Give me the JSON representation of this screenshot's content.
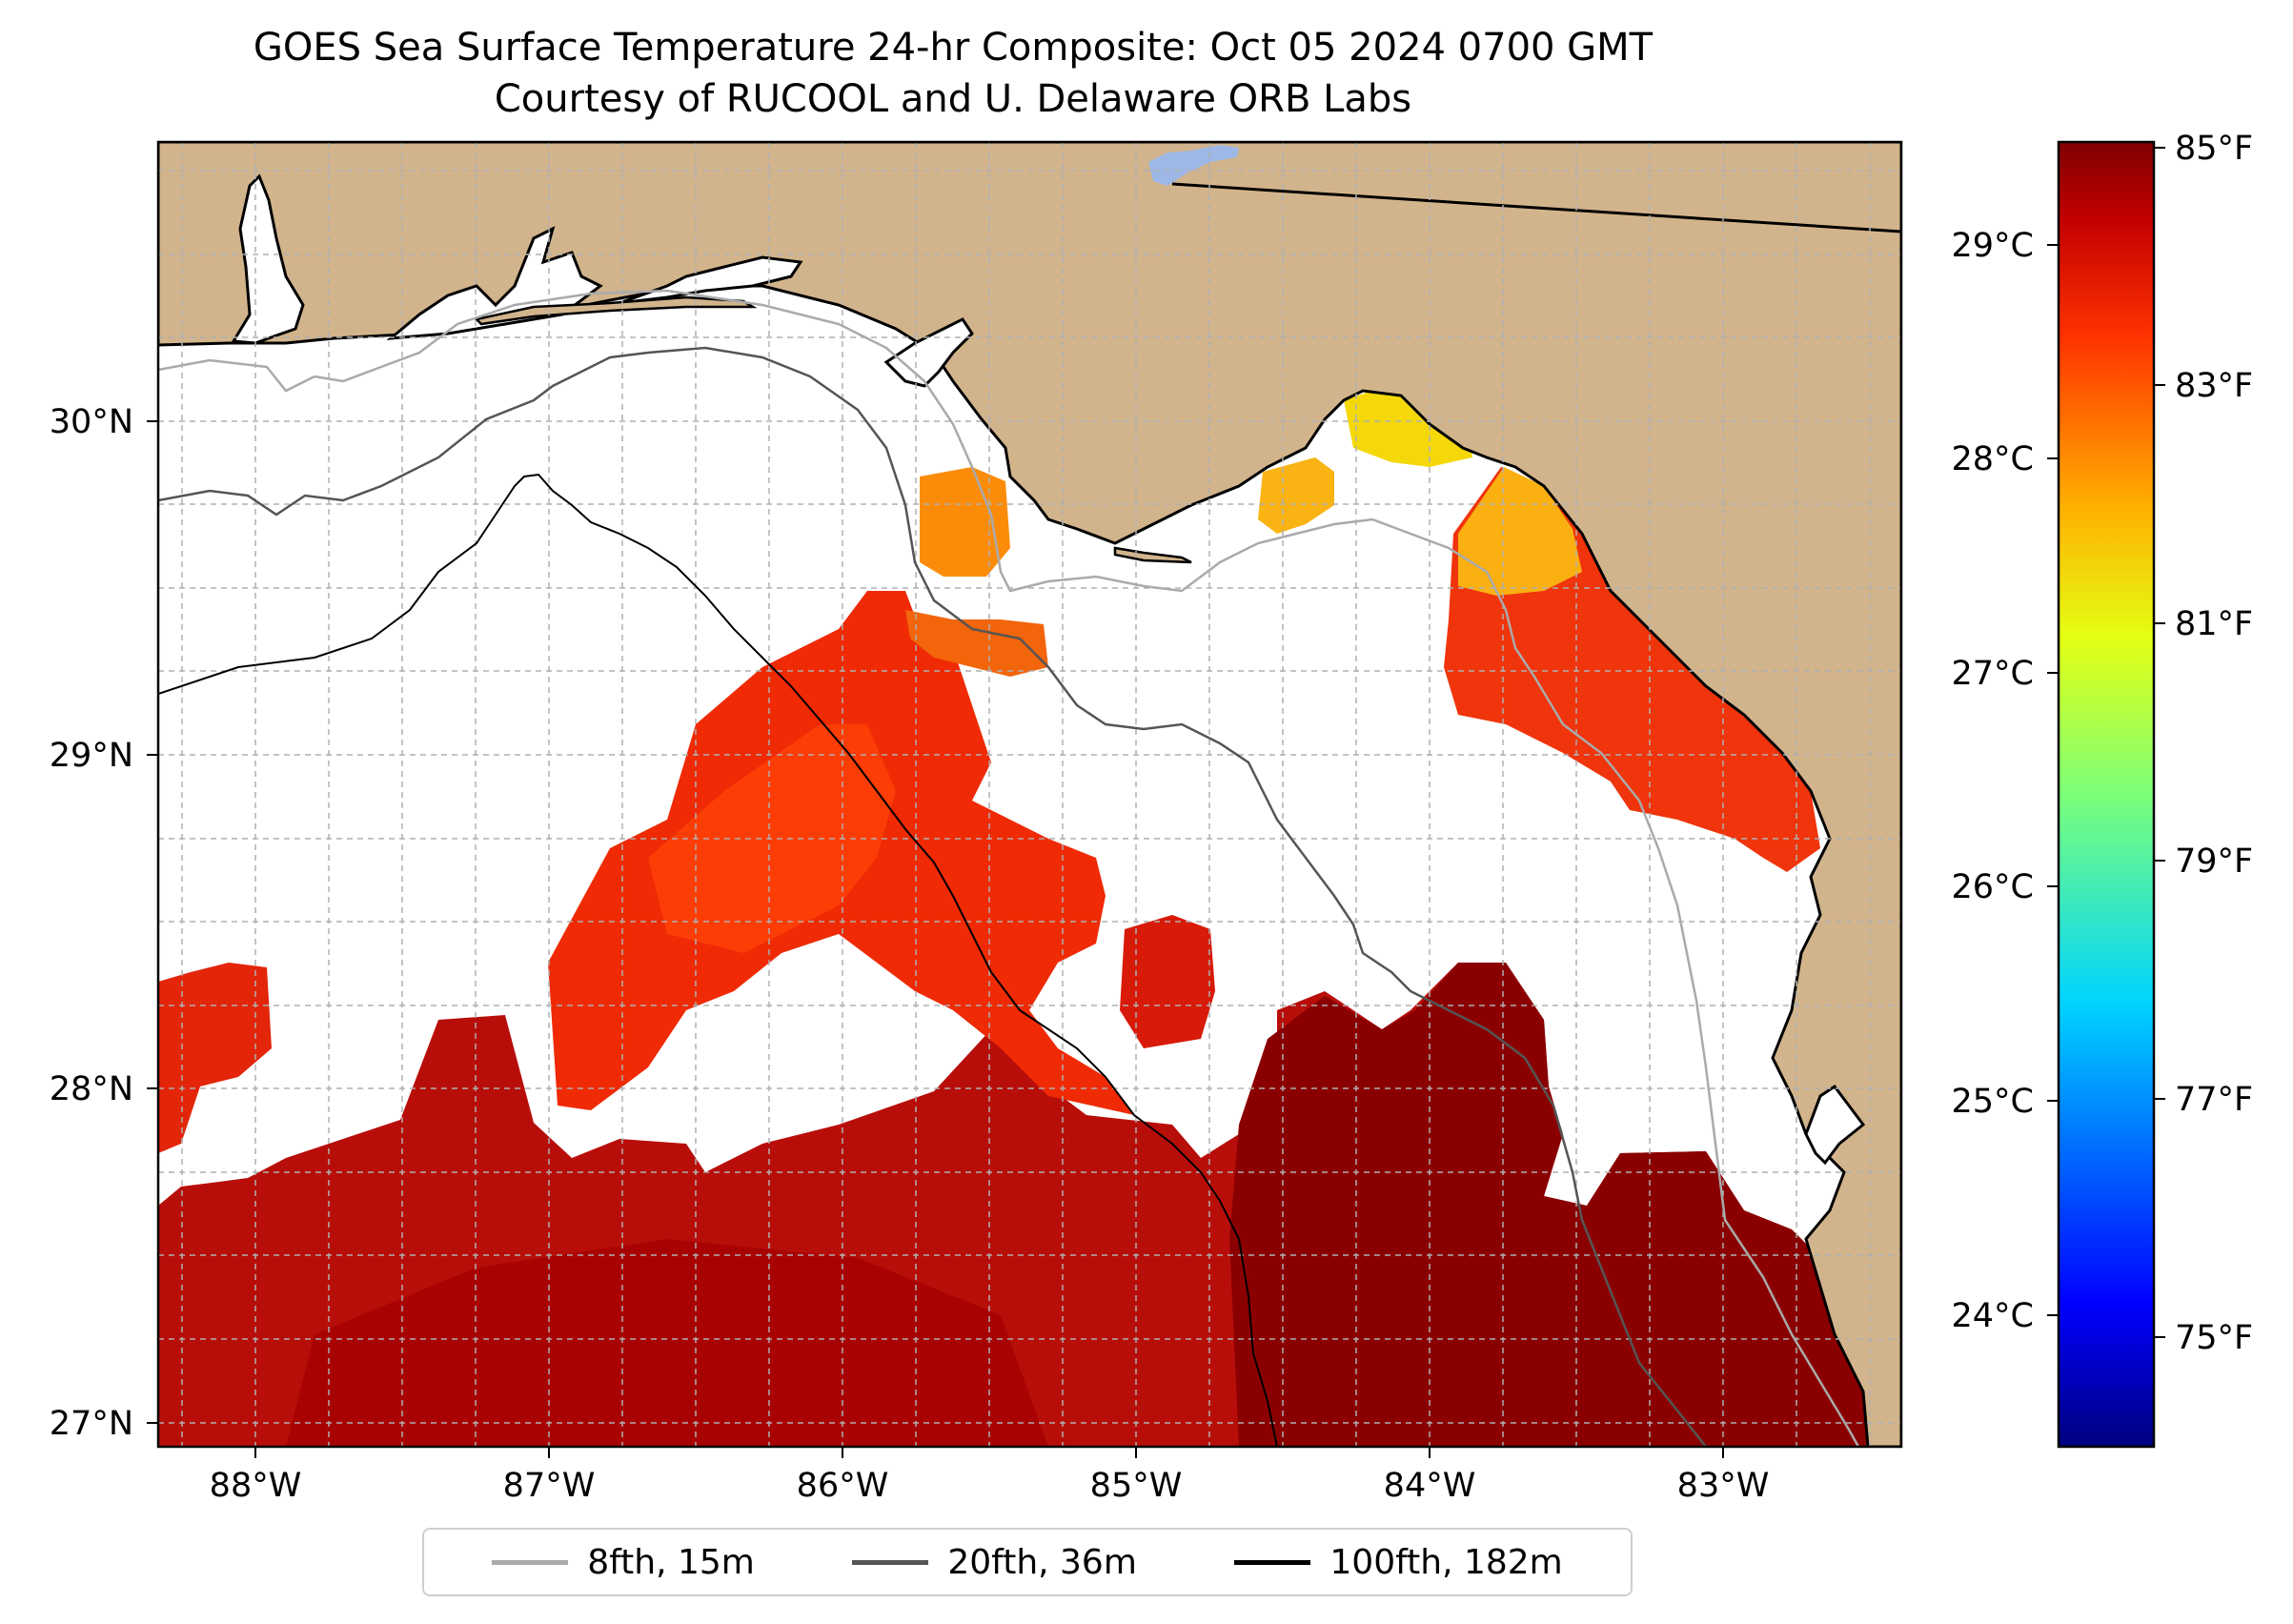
{
  "title": "GOES Sea Surface Temperature 24-hr Composite: Oct 05 2024 0700 GMT",
  "subtitle": "Courtesy of RUCOOL and U. Delaware ORB Labs",
  "map": {
    "lon_range": [
      -88.33,
      -82.38
    ],
    "lat_range": [
      26.93,
      30.85
    ],
    "lon_ticks": [
      "88°W",
      "87°W",
      "86°W",
      "85°W",
      "84°W",
      "83°W"
    ],
    "lat_ticks": [
      "27°N",
      "28°N",
      "29°N",
      "30°N"
    ],
    "colors": {
      "land": "#d2b48c",
      "no_data": "#ffffff",
      "lake": "#9db8e6",
      "grid": "#b0b0b0"
    }
  },
  "colorbar": {
    "celsius_ticks": [
      "24°C",
      "25°C",
      "26°C",
      "27°C",
      "28°C",
      "29°C"
    ],
    "fahrenheit_ticks": [
      "75°F",
      "77°F",
      "79°F",
      "81°F",
      "83°F",
      "85°F"
    ],
    "colormap": "jet",
    "range_f": [
      74.0,
      85.2
    ]
  },
  "legend": [
    {
      "label": "8fth, 15m",
      "color": "#aaaaaa"
    },
    {
      "label": "20fth, 36m",
      "color": "#555555"
    },
    {
      "label": "100fth, 182m",
      "color": "#000000"
    }
  ]
}
